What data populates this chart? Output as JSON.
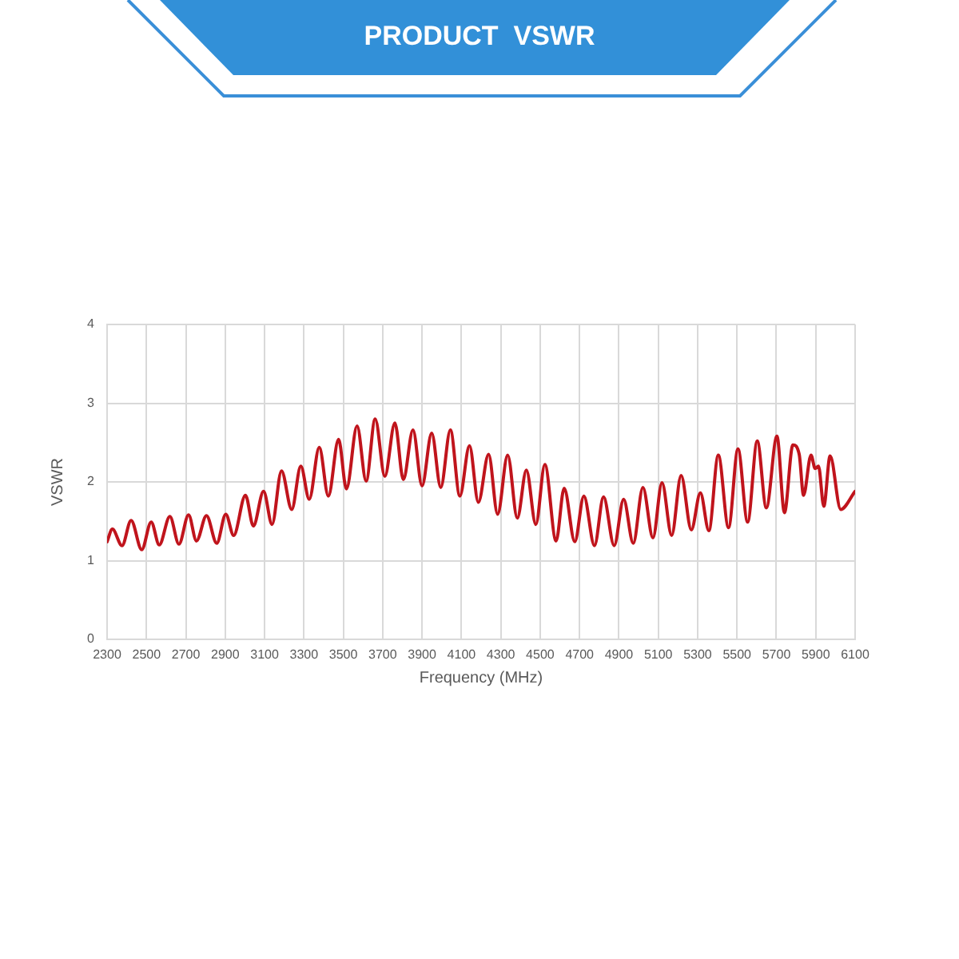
{
  "chart_data": {
    "type": "line",
    "title": "PRODUCT  VSWR",
    "xlabel": "Frequency (MHz)",
    "ylabel": "VSWR",
    "color": "#c0141c",
    "x": [
      2300,
      2327,
      2376,
      2422,
      2476,
      2524,
      2565,
      2619,
      2665,
      2714,
      2754,
      2805,
      2857,
      2903,
      2943,
      3003,
      3043,
      3095,
      3138,
      3186,
      3238,
      3284,
      3327,
      3378,
      3424,
      3476,
      3516,
      3570,
      3616,
      3662,
      3711,
      3762,
      3805,
      3854,
      3900,
      3949,
      3995,
      4044,
      4092,
      4141,
      4186,
      4238,
      4284,
      4335,
      4384,
      4430,
      4478,
      4524,
      4581,
      4622,
      4676,
      4722,
      4776,
      4822,
      4876,
      4924,
      4973,
      5022,
      5073,
      5119,
      5168,
      5216,
      5268,
      5314,
      5357,
      5405,
      5457,
      5505,
      5554,
      5603,
      5649,
      5703,
      5741,
      5784,
      5816,
      5838,
      5876,
      5897,
      5914,
      5941,
      5973,
      6027,
      6100
    ],
    "values": [
      1.24,
      1.4,
      1.19,
      1.51,
      1.14,
      1.49,
      1.2,
      1.56,
      1.21,
      1.58,
      1.25,
      1.57,
      1.22,
      1.59,
      1.32,
      1.83,
      1.44,
      1.88,
      1.46,
      2.14,
      1.65,
      2.2,
      1.78,
      2.44,
      1.82,
      2.54,
      1.91,
      2.71,
      2.01,
      2.8,
      2.07,
      2.75,
      2.03,
      2.66,
      1.95,
      2.62,
      1.93,
      2.66,
      1.82,
      2.46,
      1.74,
      2.35,
      1.59,
      2.34,
      1.54,
      2.15,
      1.46,
      2.22,
      1.25,
      1.92,
      1.24,
      1.82,
      1.19,
      1.81,
      1.19,
      1.78,
      1.22,
      1.93,
      1.29,
      1.99,
      1.32,
      2.08,
      1.39,
      1.86,
      1.38,
      2.34,
      1.42,
      2.42,
      1.49,
      2.52,
      1.67,
      2.58,
      1.61,
      2.47,
      2.35,
      1.83,
      2.34,
      2.17,
      2.2,
      1.69,
      2.33,
      1.65,
      1.88
    ],
    "xlim": [
      2300,
      6100
    ],
    "xticks": [
      2300,
      2500,
      2700,
      2900,
      3100,
      3300,
      3500,
      3700,
      3900,
      4100,
      4300,
      4500,
      4700,
      4900,
      5100,
      5300,
      5500,
      5700,
      5900,
      6100
    ],
    "ylim": [
      0,
      4
    ],
    "yticks": [
      0,
      1,
      2,
      3,
      4
    ],
    "grid": true
  }
}
